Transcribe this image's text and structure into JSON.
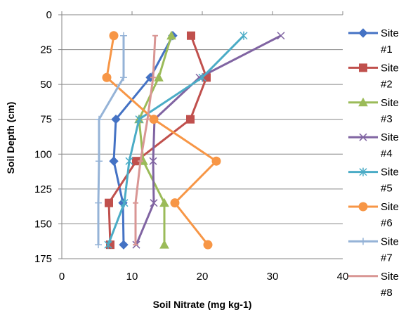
{
  "chart_data": {
    "type": "line",
    "xlabel": "Soil Nitrate (mg kg-1)",
    "ylabel": "Soil Depth (cm)",
    "xlim": [
      0,
      40
    ],
    "ylim": [
      175,
      0
    ],
    "y_axis_reversed": true,
    "x_ticks": [
      "0",
      "10",
      "20",
      "30",
      "40"
    ],
    "y_ticks": [
      "0",
      "25",
      "50",
      "75",
      "100",
      "125",
      "150",
      "175"
    ],
    "grid": "horizontal",
    "legend_position": "right",
    "series": [
      {
        "name": "Site #1",
        "line1": "Site",
        "line2": "#1",
        "color": "#4472C4",
        "marker": "diamond",
        "points": [
          [
            15.8,
            15
          ],
          [
            12.6,
            45
          ],
          [
            7.7,
            75
          ],
          [
            7.4,
            105
          ],
          [
            8.7,
            135
          ],
          [
            8.8,
            165
          ]
        ]
      },
      {
        "name": "Site #2",
        "line1": "Site",
        "line2": "#2",
        "color": "#C0504D",
        "marker": "square",
        "points": [
          [
            18.4,
            15
          ],
          [
            20.6,
            45
          ],
          [
            18.3,
            75
          ],
          [
            10.6,
            105
          ],
          [
            6.7,
            135
          ],
          [
            6.9,
            165
          ]
        ]
      },
      {
        "name": "Site #3",
        "line1": "Site",
        "line2": "#3",
        "color": "#9BBB59",
        "marker": "triangle",
        "points": [
          [
            15.6,
            15
          ],
          [
            13.8,
            45
          ],
          [
            11.0,
            75
          ],
          [
            11.6,
            105
          ],
          [
            14.6,
            135
          ],
          [
            14.6,
            165
          ]
        ]
      },
      {
        "name": "Site #4",
        "line1": "Site",
        "line2": "#4",
        "color": "#8064A2",
        "marker": "x",
        "points": [
          [
            31.2,
            15
          ],
          [
            19.6,
            45
          ],
          [
            13.2,
            75
          ],
          [
            13.0,
            105
          ],
          [
            13.1,
            135
          ],
          [
            10.6,
            165
          ]
        ]
      },
      {
        "name": "Site #5",
        "line1": "Site",
        "line2": "#5",
        "color": "#4BACC6",
        "marker": "asterisk",
        "points": [
          [
            25.9,
            15
          ],
          [
            20.0,
            45
          ],
          [
            11.0,
            75
          ],
          [
            9.6,
            105
          ],
          [
            8.9,
            135
          ],
          [
            6.6,
            165
          ]
        ]
      },
      {
        "name": "Site #6",
        "line1": "Site",
        "line2": "#6",
        "color": "#F79646",
        "marker": "circle",
        "points": [
          [
            7.4,
            15
          ],
          [
            6.4,
            45
          ],
          [
            13.1,
            75
          ],
          [
            22.0,
            105
          ],
          [
            16.1,
            135
          ],
          [
            20.8,
            165
          ]
        ]
      },
      {
        "name": "Site #7",
        "line1": "Site",
        "line2": "#7",
        "color": "#95B3D7",
        "marker": "plus",
        "points": [
          [
            8.8,
            15
          ],
          [
            8.8,
            45
          ],
          [
            5.3,
            75
          ],
          [
            5.3,
            105
          ],
          [
            5.2,
            135
          ],
          [
            5.2,
            165
          ]
        ]
      },
      {
        "name": "Site #8",
        "line1": "Site",
        "line2": "#8",
        "color": "#D99694",
        "marker": "dash",
        "points": [
          [
            13.3,
            15
          ],
          [
            13.0,
            45
          ],
          [
            12.2,
            75
          ],
          [
            11.2,
            105
          ],
          [
            10.5,
            135
          ],
          [
            10.5,
            165
          ]
        ]
      }
    ]
  }
}
